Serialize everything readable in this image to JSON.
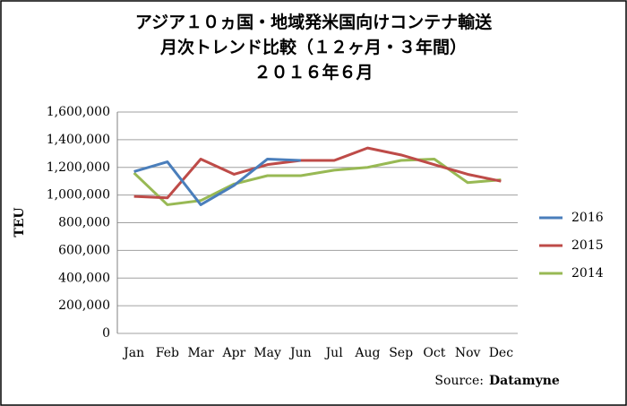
{
  "chart_data": {
    "type": "line",
    "title": [
      "アジア１０ヵ国・地域発米国向けコンテナ輸送",
      "月次トレンド比較（１２ヶ月・３年間）",
      "２０１６年６月"
    ],
    "y_label": "TEU",
    "source_label": "Source:",
    "source_name": "Datamyne",
    "categories": [
      "Jan",
      "Feb",
      "Mar",
      "Apr",
      "May",
      "Jun",
      "Jul",
      "Aug",
      "Sep",
      "Oct",
      "Nov",
      "Dec"
    ],
    "series": [
      {
        "name": "2016",
        "color": "#4a7ebb",
        "values": [
          1170000,
          1240000,
          930000,
          1070000,
          1260000,
          1250000,
          null,
          null,
          null,
          null,
          null,
          null
        ]
      },
      {
        "name": "2015",
        "color": "#be4b48",
        "values": [
          990000,
          980000,
          1260000,
          1150000,
          1220000,
          1250000,
          1250000,
          1340000,
          1290000,
          1220000,
          1150000,
          1100000
        ]
      },
      {
        "name": "2014",
        "color": "#98b954",
        "values": [
          1160000,
          930000,
          960000,
          1080000,
          1140000,
          1140000,
          1180000,
          1200000,
          1250000,
          1260000,
          1090000,
          1110000
        ]
      }
    ],
    "ylim": [
      0,
      1600000
    ],
    "yticks": [
      0,
      {
        "value": 200000,
        "label": "200,000"
      },
      {
        "value": 400000,
        "label": "400,000"
      },
      {
        "value": 600000,
        "label": "600,000"
      },
      {
        "value": 800000,
        "label": "800,000"
      },
      {
        "value": 1000000,
        "label": "1,000,000"
      },
      {
        "value": 1200000,
        "label": "1,200,000"
      },
      {
        "value": 1400000,
        "label": "1,400,000"
      },
      {
        "value": 1600000,
        "label": "1,600,000"
      }
    ],
    "grid": true,
    "legend": "right"
  }
}
